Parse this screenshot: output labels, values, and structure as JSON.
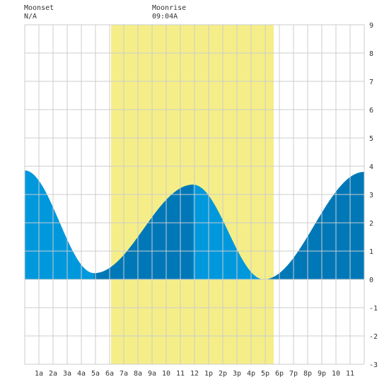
{
  "moonset": {
    "label": "Moonset",
    "time": "N/A"
  },
  "moonrise": {
    "label": "Moonrise",
    "time": "09:04A"
  },
  "chart_data": {
    "type": "area",
    "x_range_hours": [
      0,
      24
    ],
    "x_tick_labels": [
      "1a",
      "2a",
      "3a",
      "4a",
      "5a",
      "6a",
      "7a",
      "8a",
      "9a",
      "10",
      "11",
      "12",
      "1p",
      "2p",
      "3p",
      "4p",
      "5p",
      "6p",
      "7p",
      "8p",
      "9p",
      "10",
      "11"
    ],
    "ylim": [
      -3,
      9
    ],
    "y_ticks": [
      -3,
      -2,
      -1,
      0,
      1,
      2,
      3,
      4,
      5,
      6,
      7,
      8,
      9
    ],
    "grid": true,
    "daylight_hours": [
      6.1,
      17.6
    ],
    "extremes": [
      {
        "hour": 0.0,
        "height": 3.85,
        "kind": "edge"
      },
      {
        "hour": 4.9,
        "height": 0.22,
        "kind": "low"
      },
      {
        "hour": 11.9,
        "height": 3.35,
        "kind": "high"
      },
      {
        "hour": 16.9,
        "height": 0.0,
        "kind": "low"
      },
      {
        "hour": 24.0,
        "height": 3.8,
        "kind": "edge"
      }
    ],
    "colors": {
      "daylight": "#f5ee88",
      "rising_tide": "#0078b8",
      "falling_tide": "#0098dc",
      "grid": "#cccccc",
      "background": "#ffffff"
    }
  }
}
